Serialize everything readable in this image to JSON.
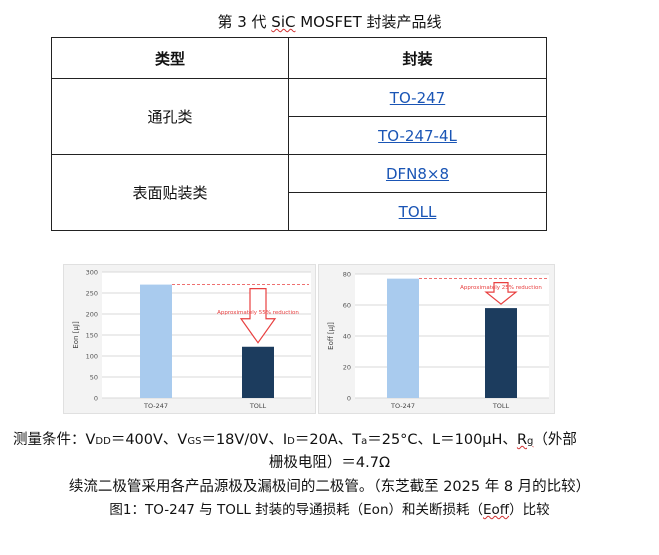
{
  "title": {
    "prefix": "第 3 代 ",
    "squiggle": "SiC",
    "suffix": " MOSFET 封装产品线"
  },
  "table": {
    "header_type": "类型",
    "header_package": "封装",
    "groups": [
      {
        "type": "通孔类",
        "packages": [
          "TO-247",
          "TO-247-4L"
        ]
      },
      {
        "type": "表面贴装类",
        "packages": [
          "DFN8×8",
          "TOLL"
        ]
      }
    ]
  },
  "charts": [
    {
      "type": "bar",
      "ylabel": "Eon [μJ]",
      "ylim": [
        0,
        300
      ],
      "ytick_step": 50,
      "categories": [
        "TO-247",
        "TOLL"
      ],
      "values": [
        270,
        122
      ],
      "annotation": "Approximately 55% reduction",
      "colors": {
        "bar1": "#a9cbee",
        "bar2": "#1c3c5e",
        "arrow": "#e84040"
      }
    },
    {
      "type": "bar",
      "ylabel": "Eoff [μJ]",
      "ylim": [
        0,
        80
      ],
      "ytick_step": 20,
      "categories": [
        "TO-247",
        "TOLL"
      ],
      "values": [
        77,
        58
      ],
      "annotation": "Approximately 25% reduction",
      "colors": {
        "bar1": "#a9cbee",
        "bar2": "#1c3c5e",
        "arrow": "#e84040"
      }
    }
  ],
  "measurement": {
    "t1": "测量条件：V",
    "vdd_sub": "DD",
    "t2": "＝400V、V",
    "vgs_sub": "GS",
    "t3": "＝18V/0V、I",
    "id_sub": "D",
    "t4": "＝20A、T",
    "ta_sub": "a",
    "t5": "＝25°C、L＝100μH、",
    "rg_main": "R",
    "rg_sub": "g",
    "t6": "（外部",
    "line2": "栅极电阻）＝4.7Ω"
  },
  "note": "续流二极管采用各产品源极及漏极间的二极管。（东芝截至 2025 年 8 月的比较）",
  "figure_caption": {
    "pre": "图1：TO-247 与 TOLL 封装的导通损耗（Eon）和关断损耗（",
    "squiggle": "Eoff",
    "post": "）比较"
  }
}
